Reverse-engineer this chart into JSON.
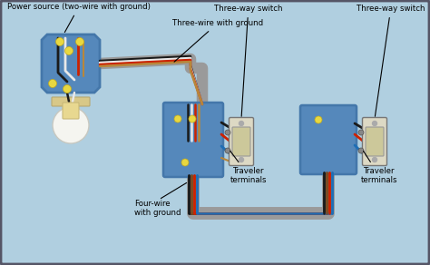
{
  "bg_color": "#b0cfe0",
  "box_color": "#5588bb",
  "box_edge": "#4477aa",
  "switch_body": "#ddd9c4",
  "switch_face": "#ccc89a",
  "wire_black": "#1a1a1a",
  "wire_red": "#cc2200",
  "wire_white": "#e8e8e8",
  "wire_blue": "#1e6eb5",
  "wire_bare": "#b8873a",
  "wire_brown": "#7a4a20",
  "conduit_color": "#9a9a9a",
  "cap_color": "#e8d840",
  "labels": {
    "power_source": "Power source (two-wire with ground)",
    "three_wire": "Three-wire with ground",
    "four_wire": "Four-wire\nwith ground",
    "switch1_label": "Three-way switch",
    "switch2_label": "Three-way switch",
    "traveler1": "Traveler\nterminals",
    "traveler2": "Traveler\nterminals"
  }
}
